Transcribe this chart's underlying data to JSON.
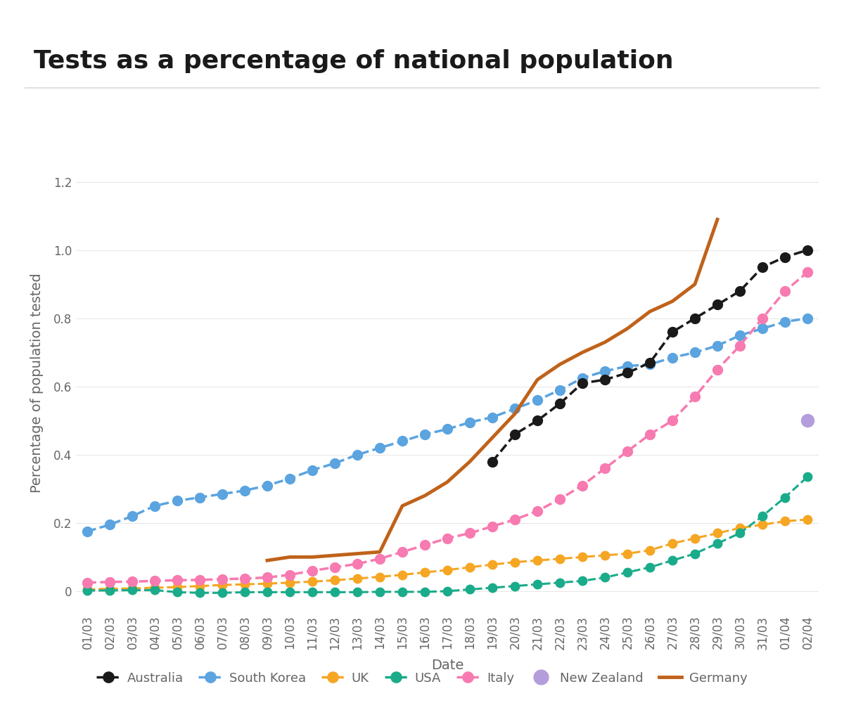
{
  "title": "Tests as a percentage of national population",
  "xlabel": "Date",
  "ylabel": "Percentage of population tested",
  "background_color": "#ffffff",
  "dates": [
    "01/03",
    "02/03",
    "03/03",
    "04/03",
    "05/03",
    "06/03",
    "07/03",
    "08/03",
    "09/03",
    "10/03",
    "11/03",
    "12/03",
    "13/03",
    "14/03",
    "15/03",
    "16/03",
    "17/03",
    "18/03",
    "19/03",
    "20/03",
    "21/03",
    "22/03",
    "23/03",
    "24/03",
    "25/03",
    "26/03",
    "27/03",
    "28/03",
    "29/03",
    "30/03",
    "31/03",
    "01/04",
    "02/04"
  ],
  "series": {
    "Australia": {
      "color": "#1a1a1a",
      "linestyle": "dashed",
      "marker": "o",
      "markersize": 10,
      "linewidth": 2.5,
      "values": [
        null,
        null,
        null,
        null,
        null,
        null,
        null,
        null,
        null,
        null,
        null,
        null,
        null,
        null,
        null,
        null,
        null,
        null,
        0.38,
        0.46,
        0.5,
        0.55,
        0.61,
        0.62,
        0.64,
        0.67,
        0.76,
        0.8,
        0.84,
        0.88,
        0.95,
        0.98,
        1.0
      ]
    },
    "South Korea": {
      "color": "#5ba4e0",
      "linestyle": "dashed",
      "marker": "o",
      "markersize": 10,
      "linewidth": 2.5,
      "values": [
        0.175,
        0.195,
        0.22,
        0.25,
        0.265,
        0.275,
        0.285,
        0.295,
        0.31,
        0.33,
        0.355,
        0.375,
        0.4,
        0.42,
        0.44,
        0.46,
        0.475,
        0.495,
        0.51,
        0.535,
        0.56,
        0.59,
        0.625,
        0.645,
        0.66,
        0.665,
        0.685,
        0.7,
        0.72,
        0.75,
        0.77,
        0.79,
        0.8
      ]
    },
    "UK": {
      "color": "#f5a623",
      "linestyle": "dashed",
      "marker": "o",
      "markersize": 9,
      "linewidth": 2.2,
      "values": [
        0.005,
        0.007,
        0.008,
        0.01,
        0.012,
        0.015,
        0.018,
        0.02,
        0.022,
        0.025,
        0.028,
        0.032,
        0.037,
        0.042,
        0.048,
        0.055,
        0.062,
        0.07,
        0.078,
        0.085,
        0.09,
        0.095,
        0.1,
        0.105,
        0.11,
        0.12,
        0.14,
        0.155,
        0.17,
        0.185,
        0.195,
        0.205,
        0.21
      ]
    },
    "USA": {
      "color": "#1aab8a",
      "linestyle": "dashed",
      "marker": "o",
      "markersize": 9,
      "linewidth": 2.2,
      "values": [
        0.002,
        0.002,
        0.003,
        0.003,
        -0.003,
        -0.005,
        -0.005,
        -0.003,
        -0.003,
        -0.003,
        -0.003,
        -0.003,
        -0.003,
        -0.002,
        -0.002,
        -0.002,
        0.0,
        0.005,
        0.01,
        0.015,
        0.02,
        0.025,
        0.03,
        0.04,
        0.055,
        0.07,
        0.09,
        0.11,
        0.14,
        0.17,
        0.22,
        0.275,
        0.335
      ]
    },
    "Italy": {
      "color": "#f77ab0",
      "linestyle": "dashed",
      "marker": "o",
      "markersize": 10,
      "linewidth": 2.5,
      "values": [
        0.025,
        0.027,
        0.028,
        0.03,
        0.032,
        0.033,
        0.035,
        0.037,
        0.04,
        0.048,
        0.06,
        0.07,
        0.08,
        0.095,
        0.115,
        0.135,
        0.155,
        0.17,
        0.19,
        0.21,
        0.235,
        0.27,
        0.31,
        0.36,
        0.41,
        0.46,
        0.5,
        0.57,
        0.65,
        0.72,
        0.8,
        0.88,
        0.935
      ]
    },
    "New Zealand": {
      "color": "#b39ddb",
      "linestyle": "none",
      "marker": "o",
      "markersize": 13,
      "linewidth": 0,
      "values": [
        null,
        null,
        null,
        null,
        null,
        null,
        null,
        null,
        null,
        null,
        null,
        null,
        null,
        null,
        null,
        null,
        null,
        null,
        null,
        null,
        null,
        null,
        null,
        null,
        null,
        null,
        null,
        null,
        null,
        null,
        null,
        null,
        0.5
      ]
    },
    "Germany": {
      "color": "#c0621a",
      "linestyle": "solid",
      "marker": "none",
      "markersize": 0,
      "linewidth": 3.5,
      "values": [
        null,
        null,
        null,
        null,
        null,
        null,
        null,
        null,
        0.09,
        0.1,
        0.1,
        0.105,
        0.11,
        0.115,
        0.25,
        0.28,
        0.32,
        0.38,
        0.45,
        0.52,
        0.62,
        0.665,
        0.7,
        0.73,
        0.77,
        0.82,
        0.85,
        0.9,
        1.09,
        null,
        null,
        null,
        null
      ]
    }
  },
  "ylim": [
    -0.06,
    1.28
  ],
  "yticks": [
    0.0,
    0.2,
    0.4,
    0.6,
    0.8,
    1.0,
    1.2
  ],
  "title_fontsize": 26,
  "label_fontsize": 14,
  "tick_fontsize": 12,
  "legend_fontsize": 13,
  "separator_color": "#e0e0e0",
  "tick_color": "#666666",
  "grid_color": "#e8e8e8"
}
